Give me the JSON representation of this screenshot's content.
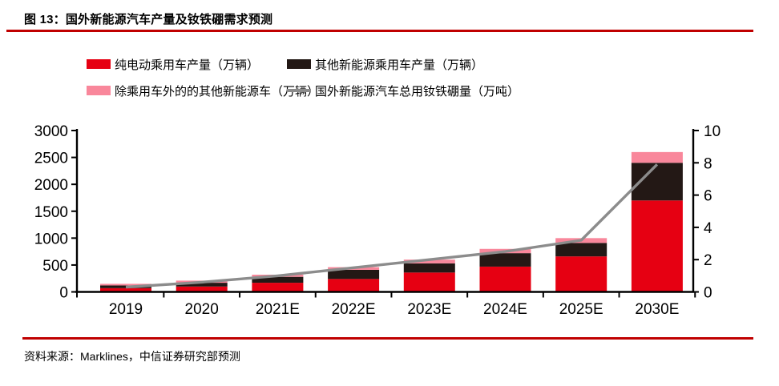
{
  "header": {
    "title": "图 13：国外新能源汽车产量及钕铁硼需求预测"
  },
  "footer": {
    "source": "资料来源：Marklines，中信证券研究部预测"
  },
  "colors": {
    "accent_rule": "#c00000",
    "bev": "#e60012",
    "other_pv": "#231815",
    "non_pv": "#f9879b",
    "line": "#8c8c8c",
    "axis": "#000000"
  },
  "chart_data": {
    "type": "bar",
    "stacked": true,
    "grid": false,
    "legend_position": "top",
    "categories": [
      "2019",
      "2020",
      "2021E",
      "2022E",
      "2023E",
      "2024E",
      "2025E",
      "2030E"
    ],
    "series": [
      {
        "name": "纯电动乘用车产量（万辆）",
        "type": "bar",
        "axis": "left",
        "color_key": "bev",
        "values": [
          70,
          100,
          170,
          240,
          360,
          470,
          660,
          1700
        ]
      },
      {
        "name": "其他新能源乘用车产量（万辆）",
        "type": "bar",
        "axis": "left",
        "color_key": "other_pv",
        "values": [
          50,
          70,
          110,
          170,
          170,
          250,
          250,
          700
        ]
      },
      {
        "name": "除乘用车外的的其他新能源车（万辆）",
        "type": "bar",
        "axis": "left",
        "color_key": "non_pv",
        "values": [
          30,
          40,
          40,
          50,
          70,
          80,
          90,
          200
        ]
      },
      {
        "name": "国外新能源汽车总用钕铁硼量（万吨）",
        "type": "line",
        "axis": "right",
        "color_key": "line",
        "values": [
          0.3,
          0.6,
          1.0,
          1.5,
          2.0,
          2.5,
          3.2,
          7.9
        ]
      }
    ],
    "left_axis": {
      "min": 0,
      "max": 3000,
      "step": 500
    },
    "right_axis": {
      "min": 0,
      "max": 10,
      "step": 2
    }
  }
}
